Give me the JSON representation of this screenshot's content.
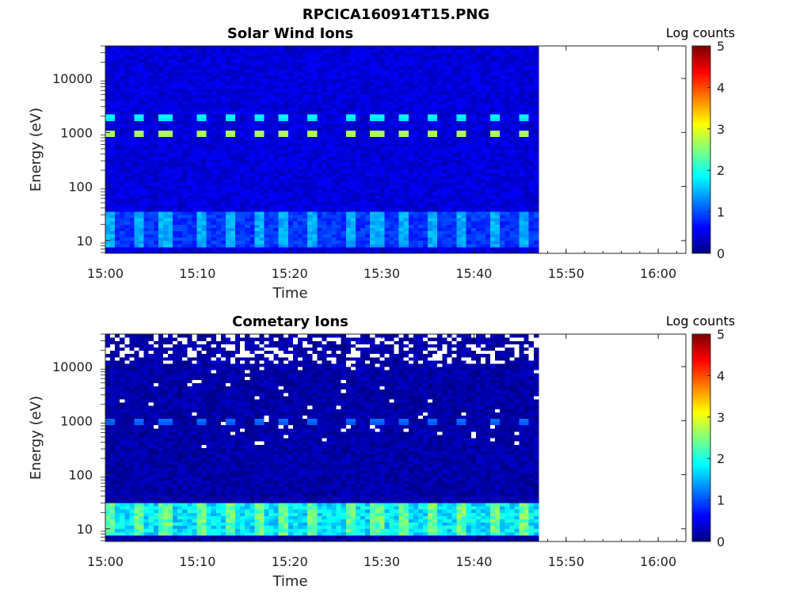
{
  "figure": {
    "title": "RPCICA160914T15.PNG"
  },
  "colormap": [
    "#00007f",
    "#0000ff",
    "#007fff",
    "#00ffff",
    "#7fff7f",
    "#ffff00",
    "#ff7f00",
    "#ff0000",
    "#7f0000"
  ],
  "chart_data": [
    {
      "type": "heatmap",
      "title": "Solar Wind Ions",
      "xlabel": "Time",
      "ylabel": "Energy (eV)",
      "x_ticks": [
        "15:00",
        "15:10",
        "15:20",
        "15:30",
        "15:40",
        "15:50",
        "16:00"
      ],
      "x_range": [
        "15:00",
        "16:03"
      ],
      "data_end": "15:47",
      "y_scale": "log",
      "y_ticks": [
        10,
        100,
        1000,
        10000
      ],
      "y_range": [
        5.8,
        40000
      ],
      "colorbar": {
        "label": "Log counts",
        "ticks": [
          0,
          1,
          2,
          3,
          4,
          5
        ],
        "range": [
          0,
          5
        ]
      },
      "background_log_counts": 0.45,
      "low_energy_band": {
        "energy_range": [
          8,
          35
        ],
        "log_counts": 0.95
      },
      "periodic_peaks": [
        {
          "energy": 1000,
          "log_counts": 2.8
        },
        {
          "energy": 2000,
          "log_counts": 1.9
        }
      ],
      "peak_times": [
        "15:00",
        "15:03",
        "15:06",
        "15:10",
        "15:13",
        "15:16",
        "15:19",
        "15:22",
        "15:26",
        "15:29",
        "15:32",
        "15:35",
        "15:38",
        "15:42",
        "15:45"
      ]
    },
    {
      "type": "heatmap",
      "title": "Cometary Ions",
      "xlabel": "Time",
      "ylabel": "Energy (eV)",
      "x_ticks": [
        "15:00",
        "15:10",
        "15:20",
        "15:30",
        "15:40",
        "15:50",
        "16:00"
      ],
      "x_range": [
        "15:00",
        "16:03"
      ],
      "data_end": "15:47",
      "y_scale": "log",
      "y_ticks": [
        10,
        100,
        1000,
        10000
      ],
      "y_range": [
        5.8,
        40000
      ],
      "colorbar": {
        "label": "Log counts",
        "ticks": [
          0,
          1,
          2,
          3,
          4,
          5
        ],
        "range": [
          0,
          5
        ]
      },
      "background_log_counts": 0.2,
      "empty_bins_above_energy": 12000,
      "low_energy_band": {
        "energy_range": [
          8,
          30
        ],
        "log_counts": 1.9
      },
      "periodic_peaks": [
        {
          "energy": 1000,
          "log_counts": 1.2
        }
      ],
      "peak_times": [
        "15:00",
        "15:03",
        "15:06",
        "15:10",
        "15:13",
        "15:16",
        "15:19",
        "15:22",
        "15:26",
        "15:29",
        "15:32",
        "15:35",
        "15:38",
        "15:42",
        "15:45"
      ]
    }
  ]
}
